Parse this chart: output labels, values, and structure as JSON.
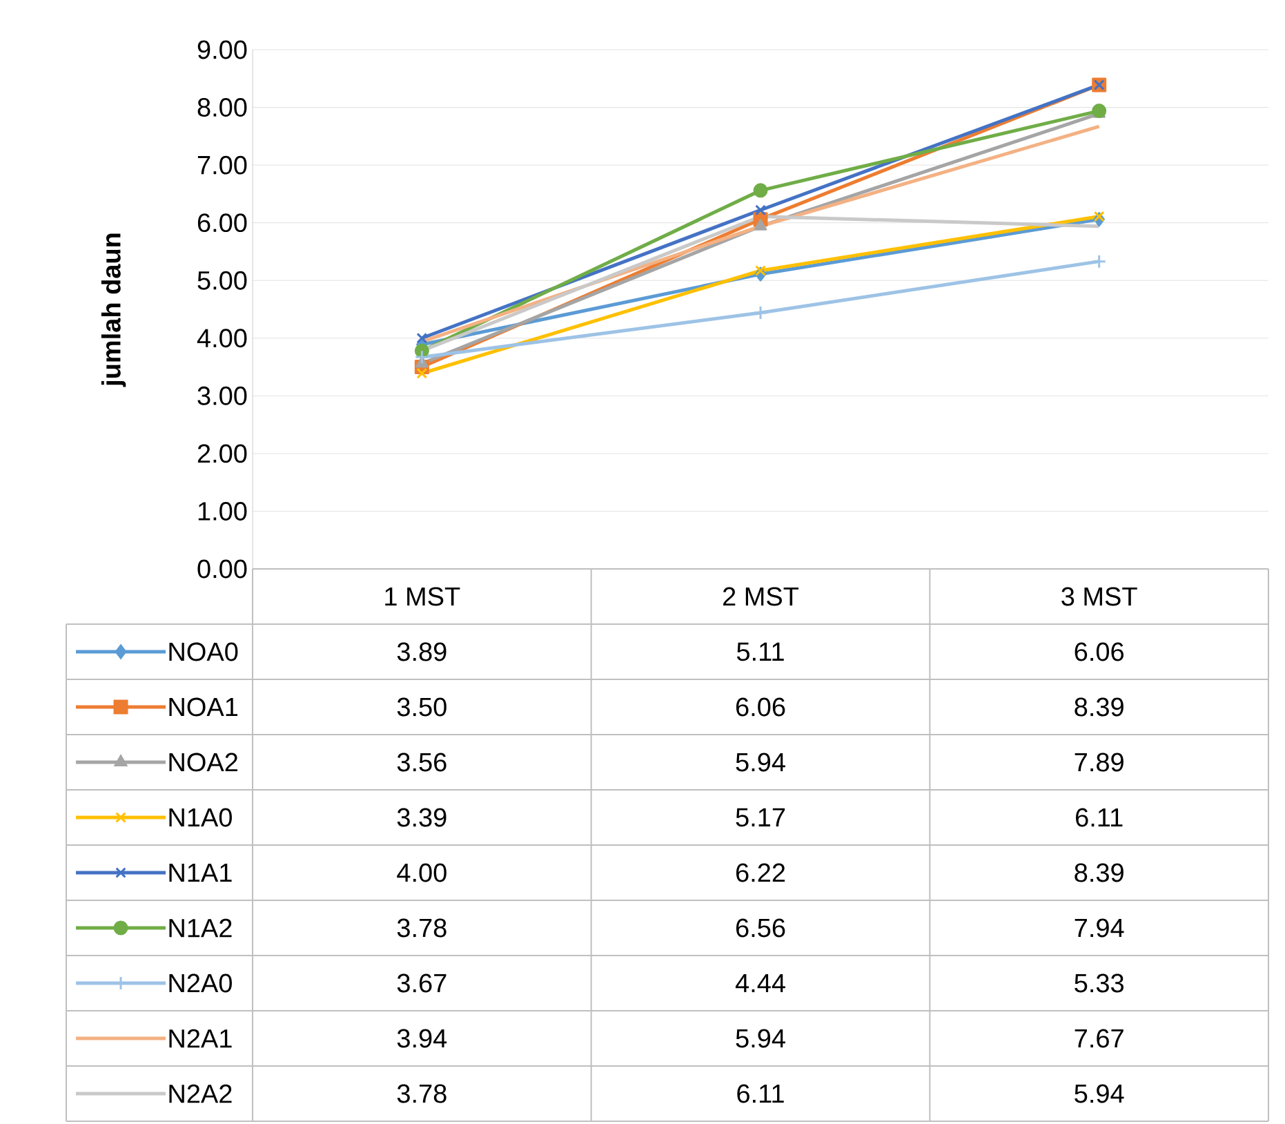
{
  "chart_data": {
    "type": "line",
    "ylabel": "jumlah daun",
    "categories": [
      "1 MST",
      "2 MST",
      "3 MST"
    ],
    "ylim": [
      0,
      9
    ],
    "yticks": [
      {
        "value": 0,
        "label": "0.00"
      },
      {
        "value": 1,
        "label": "1.00"
      },
      {
        "value": 2,
        "label": "2.00"
      },
      {
        "value": 3,
        "label": "3.00"
      },
      {
        "value": 4,
        "label": "4.00"
      },
      {
        "value": 5,
        "label": "5.00"
      },
      {
        "value": 6,
        "label": "6.00"
      },
      {
        "value": 7,
        "label": "7.00"
      },
      {
        "value": 8,
        "label": "8.00"
      },
      {
        "value": 9,
        "label": "9.00"
      }
    ],
    "grid": "y",
    "legend": "bottom",
    "series": [
      {
        "name": "NOA0",
        "color": "#5b9bd5",
        "marker": "diamond",
        "values": [
          3.89,
          5.11,
          6.06
        ],
        "value_labels": [
          "3.89",
          "5.11",
          "6.06"
        ]
      },
      {
        "name": "NOA1",
        "color": "#ed7d31",
        "marker": "square",
        "values": [
          3.5,
          6.06,
          8.39
        ],
        "value_labels": [
          "3.50",
          "6.06",
          "8.39"
        ]
      },
      {
        "name": "NOA2",
        "color": "#a5a5a5",
        "marker": "triangle",
        "values": [
          3.56,
          5.94,
          7.89
        ],
        "value_labels": [
          "3.56",
          "5.94",
          "7.89"
        ]
      },
      {
        "name": "N1A0",
        "color": "#ffc000",
        "marker": "cross",
        "values": [
          3.39,
          5.17,
          6.11
        ],
        "value_labels": [
          "3.39",
          "5.17",
          "6.11"
        ]
      },
      {
        "name": "N1A1",
        "color": "#4472c4",
        "marker": "cross",
        "values": [
          4.0,
          6.22,
          8.39
        ],
        "value_labels": [
          "4.00",
          "6.22",
          "8.39"
        ]
      },
      {
        "name": "N1A2",
        "color": "#70ad47",
        "marker": "circle",
        "values": [
          3.78,
          6.56,
          7.94
        ],
        "value_labels": [
          "3.78",
          "6.56",
          "7.94"
        ]
      },
      {
        "name": "N2A0",
        "color": "#9dc3e6",
        "marker": "plus",
        "values": [
          3.67,
          4.44,
          5.33
        ],
        "value_labels": [
          "3.67",
          "4.44",
          "5.33"
        ]
      },
      {
        "name": "N2A1",
        "color": "#f4b183",
        "marker": "none",
        "values": [
          3.94,
          5.94,
          7.67
        ],
        "value_labels": [
          "3.94",
          "5.94",
          "7.67"
        ]
      },
      {
        "name": "N2A2",
        "color": "#c9c9c9",
        "marker": "none",
        "values": [
          3.78,
          6.11,
          5.94
        ],
        "value_labels": [
          "3.78",
          "6.11",
          "5.94"
        ]
      }
    ]
  }
}
